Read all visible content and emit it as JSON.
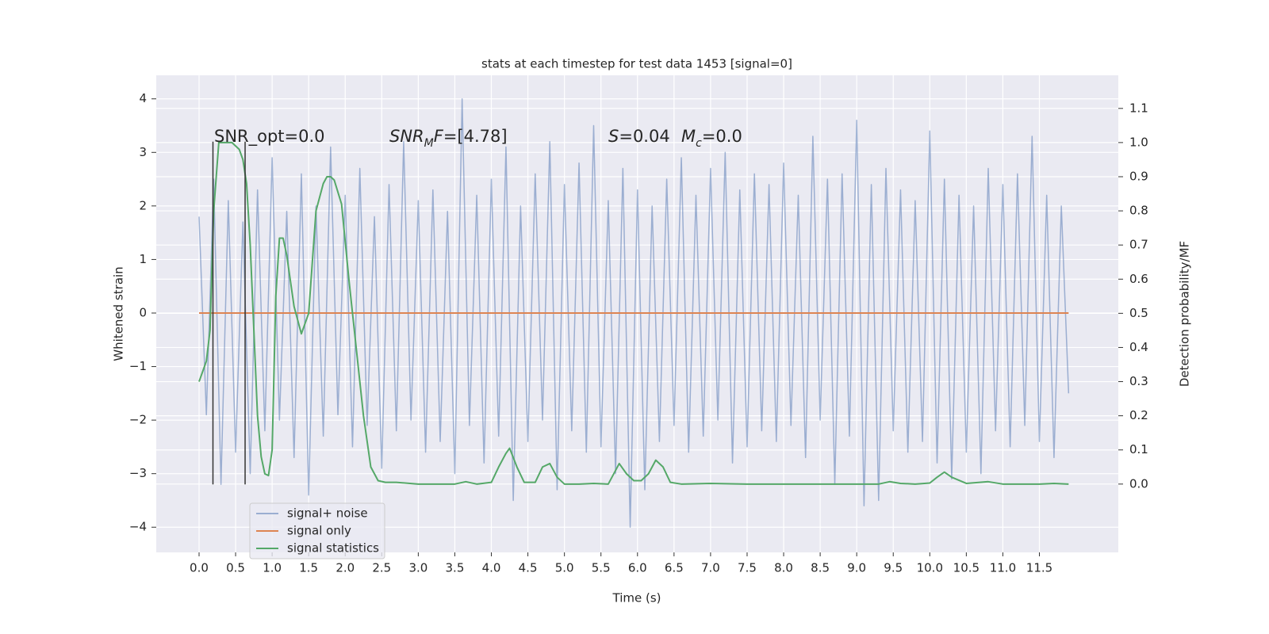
{
  "chart_data": {
    "type": "line",
    "title": "stats at each timestep for test data 1453 [signal=0]",
    "xlabel": "Time (s)",
    "ylabel": "Whitened strain",
    "y2label": "Detection probability/MF",
    "xlim": [
      -0.586,
      12.58
    ],
    "ylim": [
      -4.47,
      4.44
    ],
    "y2lim": [
      -0.2,
      1.197
    ],
    "xticks": [
      {
        "value": 0,
        "label": "0.0"
      },
      0.5,
      {
        "value": 1,
        "label": "1.0"
      },
      1.5,
      {
        "value": 2,
        "label": "2.0"
      },
      2.5,
      {
        "value": 3,
        "label": "3.0"
      },
      3.5,
      {
        "value": 4,
        "label": "4.0"
      },
      4.5,
      {
        "value": 5,
        "label": "5.0"
      },
      5.5,
      {
        "value": 6,
        "label": "6.0"
      },
      6.5,
      {
        "value": 7,
        "label": "7.0"
      },
      7.5,
      {
        "value": 8,
        "label": "8.0"
      },
      8.5,
      {
        "value": 9,
        "label": "9.0"
      },
      9.5,
      {
        "value": 10,
        "label": "10.0"
      },
      10.5,
      {
        "value": 11,
        "label": "11.0"
      },
      11.5
    ],
    "yticks": [
      {
        "value": -4,
        "label": "−4"
      },
      {
        "value": -3,
        "label": "−3"
      },
      {
        "value": -2,
        "label": "−2"
      },
      {
        "value": -1,
        "label": "−1"
      },
      0,
      1,
      2,
      3,
      4
    ],
    "y2ticks": [
      {
        "value": 0,
        "label": "0.0"
      },
      0.1,
      0.2,
      0.3,
      0.4,
      0.5,
      0.6,
      0.7,
      0.8,
      0.9,
      {
        "value": 1,
        "label": "1.0"
      },
      1.1
    ],
    "grid": true,
    "legend": "lower left",
    "series": [
      {
        "name": "signal+ noise",
        "color": "#4c72b0",
        "opacity": 0.5,
        "x": [
          0,
          0.1,
          0.2,
          0.3,
          0.4,
          0.5,
          0.6,
          0.7,
          0.8,
          0.9,
          1,
          1.1,
          1.2,
          1.3,
          1.4,
          1.5,
          1.6,
          1.7,
          1.8,
          1.9,
          2,
          2.1,
          2.2,
          2.3,
          2.4,
          2.5,
          2.6,
          2.7,
          2.8,
          2.9,
          3,
          3.1,
          3.2,
          3.3,
          3.4,
          3.5,
          3.6,
          3.7,
          3.8,
          3.9,
          4,
          4.1,
          4.2,
          4.3,
          4.4,
          4.5,
          4.6,
          4.7,
          4.8,
          4.9,
          5,
          5.1,
          5.2,
          5.3,
          5.4,
          5.5,
          5.6,
          5.7,
          5.8,
          5.9,
          6,
          6.1,
          6.2,
          6.3,
          6.4,
          6.5,
          6.6,
          6.7,
          6.8,
          6.9,
          7,
          7.1,
          7.2,
          7.3,
          7.4,
          7.5,
          7.6,
          7.7,
          7.8,
          7.9,
          8,
          8.1,
          8.2,
          8.3,
          8.4,
          8.5,
          8.6,
          8.7,
          8.8,
          8.9,
          9,
          9.1,
          9.2,
          9.3,
          9.4,
          9.5,
          9.6,
          9.7,
          9.8,
          9.9,
          10,
          10.1,
          10.2,
          10.3,
          10.4,
          10.5,
          10.6,
          10.7,
          10.8,
          10.9,
          11,
          11.1,
          11.2,
          11.3,
          11.4,
          11.5,
          11.6,
          11.7,
          11.8,
          11.9
        ],
        "values": [
          1.8,
          -1.9,
          2.5,
          -3.2,
          2.1,
          -2.6,
          1.7,
          -3.0,
          2.3,
          -2.2,
          2.9,
          -2.0,
          1.9,
          -2.7,
          2.6,
          -3.4,
          2.0,
          -2.3,
          3.1,
          -1.9,
          2.2,
          -2.5,
          2.7,
          -2.1,
          1.8,
          -2.9,
          2.4,
          -2.2,
          3.2,
          -2.0,
          2.1,
          -2.6,
          2.3,
          -2.4,
          1.9,
          -3.0,
          4.0,
          -2.1,
          2.2,
          -2.8,
          2.5,
          -2.3,
          3.1,
          -3.5,
          2.0,
          -2.4,
          2.6,
          -2.0,
          3.2,
          -3.3,
          2.4,
          -2.2,
          2.8,
          -2.6,
          3.5,
          -2.5,
          2.1,
          -3.0,
          2.7,
          -4.0,
          2.3,
          -3.3,
          2.0,
          -2.4,
          2.5,
          -2.1,
          2.9,
          -2.6,
          2.2,
          -2.3,
          2.7,
          -2.0,
          3.0,
          -2.8,
          2.3,
          -2.5,
          2.6,
          -2.2,
          2.4,
          -2.4,
          2.8,
          -2.1,
          2.2,
          -2.7,
          3.3,
          -2.0,
          2.5,
          -3.2,
          2.6,
          -2.3,
          3.6,
          -3.6,
          2.4,
          -3.5,
          2.7,
          -2.2,
          2.3,
          -2.6,
          2.1,
          -2.4,
          3.4,
          -2.8,
          2.5,
          -3.1,
          2.2,
          -2.6,
          2.0,
          -3.0,
          2.7,
          -2.2,
          2.4,
          -2.5,
          2.6,
          -2.1,
          3.3,
          -2.4,
          2.2,
          -2.7,
          2.0,
          -1.5
        ]
      },
      {
        "name": "signal only",
        "color": "#dd8452",
        "opacity": 1,
        "x": [
          0,
          11.9
        ],
        "values": [
          0,
          0
        ]
      },
      {
        "name": "signal statistics",
        "color": "#55a868",
        "opacity": 1,
        "axis": "y2",
        "x": [
          0,
          0.1,
          0.15,
          0.2,
          0.27,
          0.35,
          0.45,
          0.55,
          0.6,
          0.65,
          0.7,
          0.75,
          0.8,
          0.85,
          0.9,
          0.95,
          1,
          1.05,
          1.1,
          1.15,
          1.2,
          1.3,
          1.4,
          1.5,
          1.6,
          1.7,
          1.75,
          1.8,
          1.85,
          1.95,
          2.05,
          2.15,
          2.25,
          2.35,
          2.45,
          2.55,
          2.7,
          3,
          3.5,
          3.65,
          3.8,
          4,
          4.1,
          4.2,
          4.25,
          4.35,
          4.45,
          4.6,
          4.7,
          4.8,
          4.9,
          5,
          5.2,
          5.4,
          5.6,
          5.75,
          5.85,
          5.95,
          6.05,
          6.15,
          6.25,
          6.35,
          6.45,
          6.6,
          7,
          7.5,
          8.5,
          9.3,
          9.45,
          9.6,
          9.8,
          10,
          10.1,
          10.2,
          10.3,
          10.5,
          10.8,
          11,
          11.5,
          11.7,
          11.9
        ],
        "values": [
          0.3,
          0.36,
          0.45,
          0.8,
          1.0,
          1.0,
          1.0,
          0.98,
          0.95,
          0.88,
          0.7,
          0.45,
          0.2,
          0.08,
          0.03,
          0.025,
          0.1,
          0.55,
          0.72,
          0.72,
          0.67,
          0.52,
          0.44,
          0.5,
          0.8,
          0.88,
          0.9,
          0.9,
          0.89,
          0.82,
          0.6,
          0.4,
          0.2,
          0.05,
          0.01,
          0.005,
          0.005,
          0.0,
          0.0,
          0.007,
          0.0,
          0.005,
          0.05,
          0.09,
          0.105,
          0.05,
          0.005,
          0.005,
          0.05,
          0.06,
          0.02,
          0.0,
          0.0,
          0.002,
          0.0,
          0.06,
          0.03,
          0.01,
          0.01,
          0.03,
          0.07,
          0.05,
          0.005,
          0.0,
          0.002,
          0.0,
          0.0,
          0.0,
          0.007,
          0.002,
          0.0,
          0.003,
          0.02,
          0.035,
          0.02,
          0.002,
          0.007,
          0.0,
          0.0,
          0.002,
          0.0
        ]
      }
    ],
    "vlines": {
      "x": [
        0.19,
        0.63
      ],
      "ymin": -3.2,
      "ymax": 3.2,
      "color": "#333333"
    },
    "annotations": [
      [
        {
          "text": "SNR_opt=0.0"
        }
      ],
      [
        {
          "text": "SNR",
          "italic": true
        },
        {
          "text": "M",
          "italic": true,
          "sub": true
        },
        {
          "text": "F",
          "italic": true
        },
        {
          "text": "=[4.78]"
        }
      ],
      [
        {
          "text": "S",
          "italic": true
        },
        {
          "text": "=0.04"
        }
      ],
      [
        {
          "text": "M",
          "italic": true
        },
        {
          "text": "c",
          "italic": true,
          "sub": true
        },
        {
          "text": "=0.0"
        }
      ]
    ]
  }
}
